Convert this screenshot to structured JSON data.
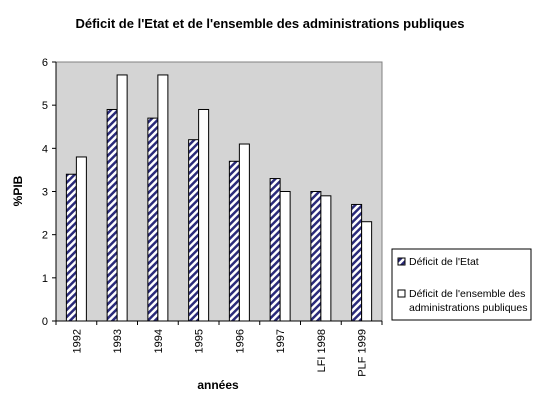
{
  "chart_data": {
    "type": "bar",
    "title": "Déficit de l'Etat et de l'ensemble des administrations publiques",
    "xlabel": "années",
    "ylabel": "%PIB",
    "ylim": [
      0,
      6
    ],
    "yticks": [
      0,
      1,
      2,
      3,
      4,
      5,
      6
    ],
    "categories": [
      "1992",
      "1993",
      "1994",
      "1995",
      "1996",
      "1997",
      "LFI 1998",
      "PLF 1999"
    ],
    "series": [
      {
        "name": "Déficit de l'Etat",
        "values": [
          3.4,
          4.9,
          4.7,
          4.2,
          3.7,
          3.3,
          3.0,
          2.7
        ],
        "pattern": "diagonal-hatch",
        "color": "#2b2b7a"
      },
      {
        "name": "Déficit de l'ensemble des administrations publiques",
        "values": [
          3.8,
          5.7,
          5.7,
          4.9,
          4.1,
          3.0,
          2.9,
          2.3
        ],
        "pattern": "solid",
        "color": "#ffffff"
      }
    ],
    "plot_background": "#d4d4d4",
    "grid": false,
    "legend_position": "right"
  }
}
